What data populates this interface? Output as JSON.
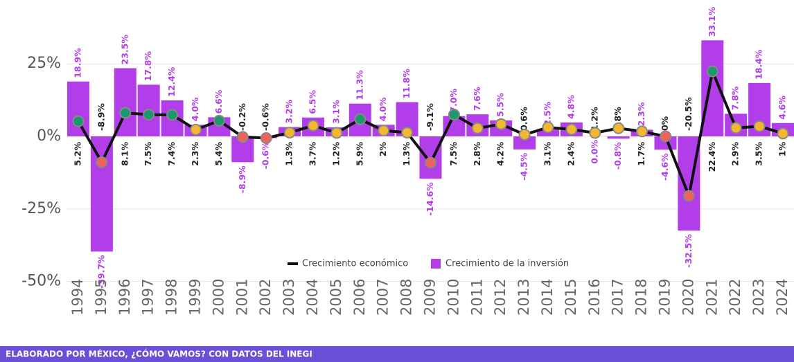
{
  "chart_data": {
    "type": "bar_line",
    "categories": [
      "1994",
      "1995",
      "1996",
      "1997",
      "1998",
      "1999",
      "2000",
      "2001",
      "2002",
      "2003",
      "2004",
      "2005",
      "2006",
      "2007",
      "2008",
      "2009",
      "2010",
      "2011",
      "2012",
      "2013",
      "2014",
      "2015",
      "2016",
      "2017",
      "2018",
      "2019",
      "2020",
      "2021",
      "2022",
      "2023",
      "2024"
    ],
    "series": [
      {
        "name": "Crecimiento de la inversión",
        "type": "bar",
        "color": "#b13ee8",
        "values": [
          18.9,
          -39.7,
          23.5,
          17.8,
          12.4,
          4.0,
          6.6,
          -8.9,
          -0.6,
          3.2,
          6.5,
          3.1,
          11.3,
          4.0,
          11.8,
          -14.6,
          7.0,
          7.6,
          5.5,
          -4.5,
          2.5,
          4.8,
          0.0,
          -0.8,
          2.3,
          -4.6,
          -32.5,
          33.1,
          7.8,
          18.4,
          4.6
        ],
        "value_labels": [
          "18.9%",
          "-39.7%",
          "23.5%",
          "17.8%",
          "12.4%",
          "4.0%",
          "6.6%",
          "-8.9%",
          "-0.6%",
          "3.2%",
          "6.5%",
          "3.1%",
          "11.3%",
          "4.0%",
          "11.8%",
          "-14.6%",
          "7.0%",
          "7.6%",
          "5.5%",
          "-4.5%",
          "2.5%",
          "4.8%",
          "0.0%",
          "-0.8%",
          "2.3%",
          "-4.6%",
          "-32.5%",
          "33.1%",
          "7.8%",
          "18.4%",
          "4.6%"
        ]
      },
      {
        "name": "Crecimiento económico",
        "type": "line",
        "color": "#111111",
        "values": [
          5.2,
          -8.9,
          8.1,
          7.5,
          7.4,
          2.3,
          5.4,
          -0.2,
          -0.6,
          1.3,
          3.7,
          1.2,
          5.9,
          2,
          1.3,
          -9.1,
          7.5,
          2.8,
          4.2,
          0.6,
          3.1,
          2.4,
          1.2,
          2.8,
          1.7,
          0,
          -20.5,
          22.4,
          2.9,
          3.5,
          1
        ],
        "value_labels": [
          "5.2%",
          "-8.9%",
          "8.1%",
          "7.5%",
          "7.4%",
          "2.3%",
          "5.4%",
          "-0.2%",
          "-0.6%",
          "1.3%",
          "3.7%",
          "1.2%",
          "5.9%",
          "2%",
          "1.3%",
          "-9.1%",
          "7.5%",
          "2.8%",
          "4.2%",
          "0.6%",
          "3.1%",
          "2.4%",
          "1.2%",
          "2.8%",
          "1.7%",
          "0%",
          "-20.5%",
          "22.4%",
          "2.9%",
          "3.5%",
          "1%"
        ],
        "marker_colors": [
          "#1a9a6c",
          "#f0625a",
          "#1a9a6c",
          "#1a9a6c",
          "#1a9a6c",
          "#f5b731",
          "#1a9a6c",
          "#f0625a",
          "#f0625a",
          "#f5b731",
          "#f5b731",
          "#f5b731",
          "#1a9a6c",
          "#f5b731",
          "#f5b731",
          "#f0625a",
          "#1a9a6c",
          "#f5b731",
          "#f5b731",
          "#f5b731",
          "#f5b731",
          "#f5b731",
          "#f5b731",
          "#f5b731",
          "#f5b731",
          "#f0625a",
          "#f0625a",
          "#1a9a6c",
          "#f5b731",
          "#f5b731",
          "#f5b731"
        ]
      }
    ],
    "ylim": [
      -52,
      47
    ],
    "yticks": [
      {
        "value": 25,
        "label": "25%"
      },
      {
        "value": 0,
        "label": "0%"
      },
      {
        "value": -25,
        "label": "-25%"
      },
      {
        "value": -50,
        "label": "-50%"
      }
    ],
    "grid": true,
    "legend": "bottom",
    "footer": "ELABORADO POR MÉXICO, ¿CÓMO VAMOS? CON DATOS DEL INEGI"
  }
}
